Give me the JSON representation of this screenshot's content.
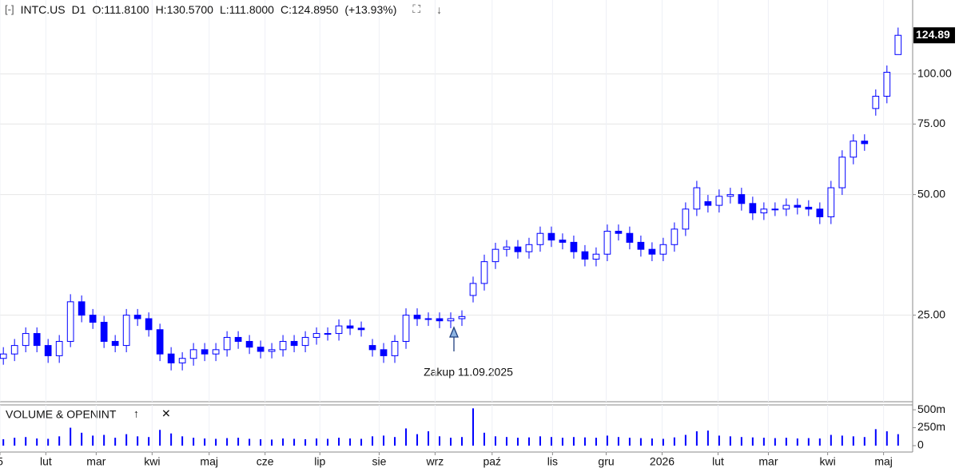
{
  "chart_data": {
    "type": "candlestick",
    "header": [
      "INTC.US",
      "D1",
      "O:111.8100",
      "H:130.5700",
      "L:111.8000",
      "C:124.8950",
      "(+13.93%)"
    ],
    "up_color": "#ffffff",
    "down_color": "#0000ff",
    "line_color": "#0000ff",
    "log_scale": true,
    "grid": true,
    "open": [
      19.5,
      20,
      21,
      22.5,
      21,
      19.8,
      21.5,
      27,
      25,
      24,
      21.5,
      21,
      25,
      24.5,
      23,
      20,
      19,
      19.5,
      20.5,
      20,
      20.5,
      22,
      21.5,
      20.8,
      20.3,
      20.5,
      21.5,
      21,
      22,
      22.5,
      22.5,
      23.5,
      23.2,
      21,
      20.5,
      19.8,
      21.5,
      25,
      24.5,
      24.5,
      24.2,
      24.5,
      28,
      30,
      34,
      36.5,
      37,
      36,
      37.5,
      40,
      38.5,
      38,
      36,
      34.5,
      35.5,
      40.5,
      40,
      38,
      36.5,
      35.5,
      37.5,
      41,
      46,
      48,
      47,
      49.5,
      50,
      47.5,
      45,
      46,
      46,
      47,
      46.5,
      46,
      44,
      52,
      62,
      68,
      82,
      88,
      111.81
    ],
    "high": [
      20.8,
      21.8,
      23.3,
      23.3,
      21.8,
      22.3,
      28.2,
      28.0,
      25.9,
      24.9,
      22.3,
      25.9,
      25.9,
      25.4,
      23.8,
      20.8,
      20.2,
      21.3,
      21.3,
      21.3,
      22.8,
      22.8,
      22.3,
      21.6,
      21.3,
      22.3,
      22.3,
      22.8,
      23.3,
      23.3,
      24.4,
      24.4,
      24.1,
      21.8,
      21.3,
      22.3,
      26.0,
      26.0,
      25.4,
      25.4,
      25.4,
      25.7,
      31.2,
      35.4,
      37.9,
      38.5,
      38.5,
      39.0,
      41.6,
      41.6,
      40.0,
      39.5,
      37.4,
      36.9,
      42.1,
      42.1,
      41.6,
      39.5,
      38.0,
      39.0,
      42.6,
      47.8,
      54.1,
      49.9,
      51.5,
      52.0,
      52.0,
      49.4,
      47.8,
      47.8,
      48.9,
      48.9,
      48.4,
      47.8,
      54.1,
      64.5,
      70.7,
      70.7,
      91.5,
      105.0,
      130.57
    ],
    "low": [
      18.8,
      19.2,
      20.2,
      20.2,
      19.0,
      19.0,
      20.8,
      24.0,
      23.1,
      20.7,
      20.2,
      20.2,
      23.5,
      22.1,
      19.2,
      18.2,
      18.2,
      18.7,
      19.2,
      19.2,
      19.7,
      20.6,
      20.0,
      19.5,
      19.5,
      19.7,
      20.2,
      20.2,
      21.1,
      21.6,
      21.6,
      22.3,
      22.1,
      19.7,
      19.0,
      19.0,
      20.6,
      23.5,
      23.5,
      23.2,
      23.2,
      23.5,
      26.9,
      28.8,
      32.6,
      35.0,
      34.6,
      34.6,
      36.0,
      37.0,
      36.5,
      34.6,
      33.1,
      33.1,
      34.1,
      38.4,
      36.5,
      35.0,
      34.1,
      34.1,
      36.0,
      39.4,
      44.2,
      45.1,
      45.1,
      47.5,
      45.6,
      43.2,
      43.2,
      44.2,
      44.2,
      44.6,
      44.2,
      42.2,
      42.2,
      49.9,
      59.5,
      64.3,
      78.7,
      84.5,
      111.8
    ],
    "close": [
      20,
      21,
      22.5,
      21,
      19.8,
      21.5,
      27,
      25,
      24,
      21.5,
      21,
      25,
      24.5,
      23,
      20,
      19,
      19.5,
      20.5,
      20,
      20.5,
      22,
      21.5,
      20.8,
      20.3,
      20.5,
      21.5,
      21,
      22,
      22.5,
      22.5,
      23.5,
      23.2,
      23,
      20.5,
      19.8,
      21.5,
      25,
      24.5,
      24.5,
      24.2,
      24.5,
      24.8,
      30,
      34,
      36.5,
      37,
      36,
      37.5,
      40,
      38.5,
      38,
      36,
      34.5,
      35.5,
      40.5,
      40,
      38,
      36.5,
      35.5,
      37.5,
      41,
      46,
      52,
      47,
      49.5,
      50,
      47.5,
      45,
      46,
      46,
      47,
      46.5,
      46,
      44,
      52,
      62,
      68,
      67,
      88,
      101,
      124.895
    ],
    "last_label": "124.89",
    "volume": [
      90,
      110,
      120,
      100,
      95,
      130,
      250,
      180,
      140,
      150,
      110,
      160,
      130,
      120,
      220,
      170,
      130,
      110,
      100,
      95,
      105,
      110,
      95,
      90,
      85,
      100,
      95,
      90,
      100,
      95,
      110,
      100,
      95,
      130,
      140,
      120,
      240,
      160,
      200,
      130,
      110,
      120,
      520,
      180,
      130,
      120,
      110,
      115,
      130,
      120,
      110,
      120,
      115,
      110,
      140,
      120,
      110,
      105,
      100,
      95,
      115,
      150,
      200,
      210,
      140,
      130,
      120,
      115,
      110,
      105,
      110,
      100,
      105,
      100,
      150,
      140,
      130,
      120,
      230,
      200,
      160
    ],
    "volume_title": "VOLUME & OPENINT",
    "xlim": [
      -0.3,
      81.3
    ],
    "xticks": [
      {
        "value": -0.3,
        "label": "5"
      },
      {
        "value": 3.8,
        "label": "lut"
      },
      {
        "value": 8.3,
        "label": "mar"
      },
      {
        "value": 13.3,
        "label": "kwi"
      },
      {
        "value": 18.4,
        "label": "maj"
      },
      {
        "value": 23.4,
        "label": "cze"
      },
      {
        "value": 28.3,
        "label": "lip"
      },
      {
        "value": 33.6,
        "label": "sie"
      },
      {
        "value": 38.6,
        "label": "wrz"
      },
      {
        "value": 43.7,
        "label": "paź"
      },
      {
        "value": 49.1,
        "label": "lis"
      },
      {
        "value": 53.9,
        "label": "gru"
      },
      {
        "value": 58.9,
        "label": "2026"
      },
      {
        "value": 63.9,
        "label": "lut"
      },
      {
        "value": 68.4,
        "label": "mar"
      },
      {
        "value": 73.7,
        "label": "kwi"
      },
      {
        "value": 78.7,
        "label": "maj"
      }
    ],
    "ylim": [
      15.2,
      153
    ],
    "yticks": [
      {
        "value": 25,
        "label": "25.00"
      },
      {
        "value": 50,
        "label": "50.00"
      },
      {
        "value": 75,
        "label": "75.00"
      },
      {
        "value": 100,
        "label": "100.00"
      }
    ],
    "y2lim": [
      0,
      590
    ],
    "y2ticks": [
      0,
      {
        "value": 250,
        "label": "250m"
      },
      {
        "value": 500,
        "label": "500m"
      }
    ],
    "annotation": "Zakup 11.09.2025"
  }
}
